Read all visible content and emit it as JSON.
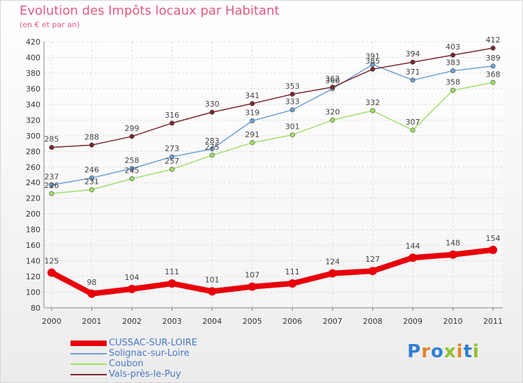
{
  "title": "Evolution des Impôts locaux par Habitant",
  "subtitle": "(en € et par an)",
  "logo": {
    "text": "Proxiti",
    "colors": [
      "#2e7fd4",
      "#e0842a",
      "#2e7fd4",
      "#8fbf2e",
      "#e0842a",
      "#2e7fd4",
      "#8fbf2e"
    ]
  },
  "chart_data": {
    "type": "line",
    "title": "Evolution des Impôts locaux par Habitant",
    "subtitle": "(en € et par an)",
    "xlabel": "",
    "ylabel": "",
    "x": [
      "2000",
      "2001",
      "2002",
      "2003",
      "2004",
      "2005",
      "2006",
      "2007",
      "2008",
      "2009",
      "2010",
      "2011"
    ],
    "ylim": [
      80,
      420
    ],
    "yticks": [
      80,
      100,
      120,
      140,
      160,
      180,
      200,
      220,
      240,
      260,
      280,
      300,
      320,
      340,
      360,
      380,
      400,
      420
    ],
    "grid": true,
    "legend_position": "bottom-left",
    "series": [
      {
        "name": "CUSSAC-SUR-LOIRE",
        "color": "#e8000b",
        "emphasis": true,
        "values": [
          125,
          98,
          104,
          111,
          101,
          107,
          111,
          124,
          127,
          144,
          148,
          154
        ]
      },
      {
        "name": "Solignac-sur-Loire",
        "color": "#6ea1d4",
        "emphasis": false,
        "values": [
          237,
          246,
          258,
          273,
          283,
          319,
          333,
          360,
          391,
          371,
          383,
          389
        ]
      },
      {
        "name": "Coubon",
        "color": "#9ee068",
        "emphasis": false,
        "values": [
          226,
          231,
          245,
          257,
          275,
          291,
          301,
          320,
          332,
          307,
          358,
          368
        ]
      },
      {
        "name": "Vals-près-le-Puy",
        "color": "#7a2630",
        "emphasis": false,
        "values": [
          285,
          288,
          299,
          316,
          330,
          341,
          353,
          362,
          385,
          394,
          403,
          412
        ]
      }
    ]
  }
}
